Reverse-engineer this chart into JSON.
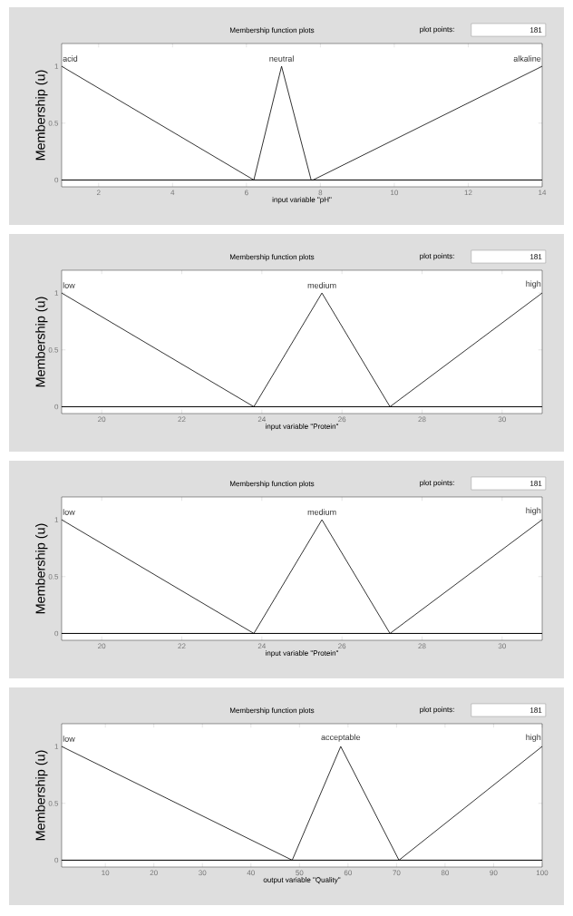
{
  "chart_data": [
    {
      "type": "line",
      "title": "Membership function plots",
      "annotations": [
        "plot points:",
        "181"
      ],
      "xlabel": "input variable \"pH\"",
      "ylabel": "Membership (u)",
      "xlim": [
        1,
        14
      ],
      "ylim": [
        -0.06,
        1.2
      ],
      "xticks": [
        2,
        4,
        6,
        8,
        10,
        12,
        14
      ],
      "yticks": [
        0,
        0.5,
        1
      ],
      "legend": false,
      "grid": false,
      "marker": "none",
      "line_style": "solid",
      "series": [
        {
          "name": "acid",
          "color": "#000000",
          "x": [
            1,
            6.2,
            14
          ],
          "values": [
            1,
            0,
            0
          ]
        },
        {
          "name": "neutral",
          "color": "#000000",
          "x": [
            1,
            6.2,
            6.95,
            7.75,
            14
          ],
          "values": [
            0,
            0,
            1,
            0,
            0
          ]
        },
        {
          "name": "alkaline",
          "color": "#000000",
          "x": [
            1,
            7.8,
            14
          ],
          "values": [
            0,
            0,
            1
          ]
        }
      ]
    },
    {
      "type": "line",
      "title": "Membership function plots",
      "annotations": [
        "plot points:",
        "181"
      ],
      "xlabel": "input variable \"Protein\"",
      "ylabel": "Membership (u)",
      "xlim": [
        19,
        31
      ],
      "ylim": [
        -0.06,
        1.2
      ],
      "xticks": [
        20,
        22,
        24,
        26,
        28,
        30
      ],
      "yticks": [
        0,
        0.5,
        1
      ],
      "legend": false,
      "grid": false,
      "marker": "none",
      "line_style": "solid",
      "series": [
        {
          "name": "low",
          "color": "#000000",
          "x": [
            19,
            23.8,
            31
          ],
          "values": [
            1,
            0,
            0
          ]
        },
        {
          "name": "medium",
          "color": "#000000",
          "x": [
            19,
            23.8,
            25.5,
            27.2,
            31
          ],
          "values": [
            0,
            0,
            1,
            0,
            0
          ]
        },
        {
          "name": "high",
          "color": "#000000",
          "x": [
            19,
            27.2,
            31
          ],
          "values": [
            0,
            0,
            1
          ]
        }
      ]
    },
    {
      "type": "line",
      "title": "Membership function plots",
      "annotations": [
        "plot points:",
        "181"
      ],
      "xlabel": "input variable \"Protein\"",
      "ylabel": "Membership (u)",
      "xlim": [
        19,
        31
      ],
      "ylim": [
        -0.06,
        1.2
      ],
      "xticks": [
        20,
        22,
        24,
        26,
        28,
        30
      ],
      "yticks": [
        0,
        0.5,
        1
      ],
      "legend": false,
      "grid": false,
      "marker": "none",
      "line_style": "solid",
      "series": [
        {
          "name": "low",
          "color": "#000000",
          "x": [
            19,
            23.8,
            31
          ],
          "values": [
            1,
            0,
            0
          ]
        },
        {
          "name": "medium",
          "color": "#000000",
          "x": [
            19,
            23.8,
            25.5,
            27.2,
            31
          ],
          "values": [
            0,
            0,
            1,
            0,
            0
          ]
        },
        {
          "name": "high",
          "color": "#000000",
          "x": [
            19,
            27.2,
            31
          ],
          "values": [
            0,
            0,
            1
          ]
        }
      ]
    },
    {
      "type": "line",
      "title": "Membership function plots",
      "annotations": [
        "plot points:",
        "181"
      ],
      "xlabel": "output variable \"Quality\"",
      "ylabel": "Membership (u)",
      "xlim": [
        1,
        100
      ],
      "ylim": [
        -0.06,
        1.2
      ],
      "xticks": [
        10,
        20,
        30,
        40,
        50,
        60,
        70,
        80,
        90,
        100
      ],
      "yticks": [
        0,
        0.5,
        1
      ],
      "legend": false,
      "grid": false,
      "marker": "none",
      "line_style": "solid",
      "series": [
        {
          "name": "low",
          "color": "#000000",
          "x": [
            1,
            48.5,
            100
          ],
          "values": [
            1,
            0,
            0
          ]
        },
        {
          "name": "acceptable",
          "color": "#000000",
          "x": [
            1,
            48.5,
            58.5,
            70.5,
            100
          ],
          "values": [
            0,
            0,
            1,
            0,
            0
          ]
        },
        {
          "name": "high",
          "color": "#000000",
          "x": [
            1,
            70.5,
            100
          ],
          "values": [
            0,
            0,
            1
          ]
        }
      ]
    }
  ]
}
